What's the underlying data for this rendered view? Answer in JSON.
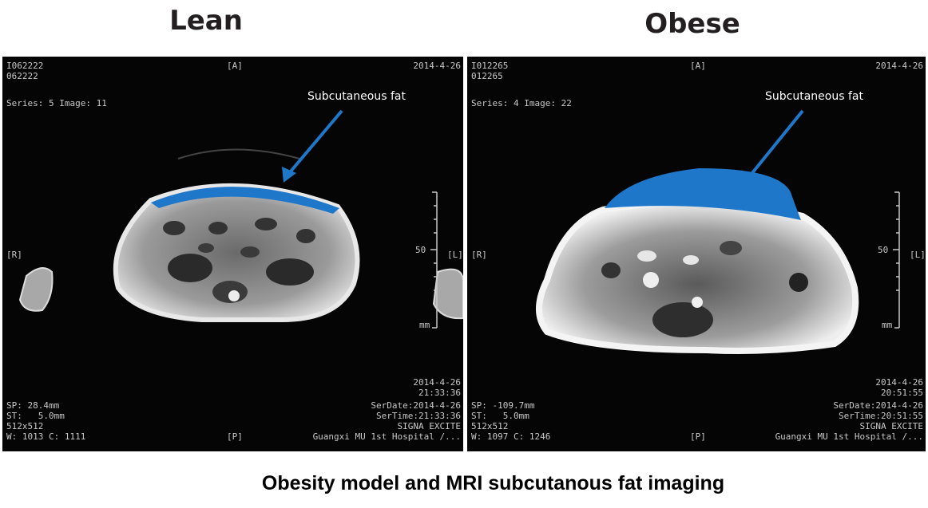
{
  "headings": {
    "left": "Lean",
    "right": "Obese"
  },
  "caption": "Obesity model and MRI subcutanous fat imaging",
  "annotation_label": "Subcutaneous fat",
  "fat_color": "#1f77c9",
  "panels": {
    "lean": {
      "patient_id_1": "I062222",
      "patient_id_2": "062222",
      "orient_top": "[A]",
      "date_top": "2014-4-26",
      "series": "Series: 5 Image: 11",
      "orient_left": "[R]",
      "orient_right": "[L]",
      "scale_label": "50",
      "scale_unit": "mm",
      "date_bottom": "2014-4-26",
      "time_bottom": "21:33:36",
      "sp": "SP: 28.4mm",
      "st": "ST:   5.0mm",
      "matrix": "512x512",
      "wc": "W: 1013 C: 1111",
      "ser_date": "SerDate:2014-4-26",
      "ser_time": "SerTime:21:33:36",
      "scanner": "SIGNA EXCITE",
      "hospital": "Guangxi MU 1st Hospital /...",
      "orient_bottom": "[P]"
    },
    "obese": {
      "patient_id_1": "I012265",
      "patient_id_2": "012265",
      "orient_top": "[A]",
      "date_top": "2014-4-26",
      "series": "Series: 4 Image: 22",
      "orient_left": "[R]",
      "orient_right": "[L]",
      "scale_label": "50",
      "scale_unit": "mm",
      "date_bottom": "2014-4-26",
      "time_bottom": "20:51:55",
      "sp": "SP: -109.7mm",
      "st": "ST:   5.0mm",
      "matrix": "512x512",
      "wc": "W: 1097 C: 1246",
      "ser_date": "SerDate:2014-4-26",
      "ser_time": "SerTime:20:51:55",
      "scanner": "SIGNA EXCITE",
      "hospital": "Guangxi MU 1st Hospital /...",
      "orient_bottom": "[P]"
    }
  }
}
